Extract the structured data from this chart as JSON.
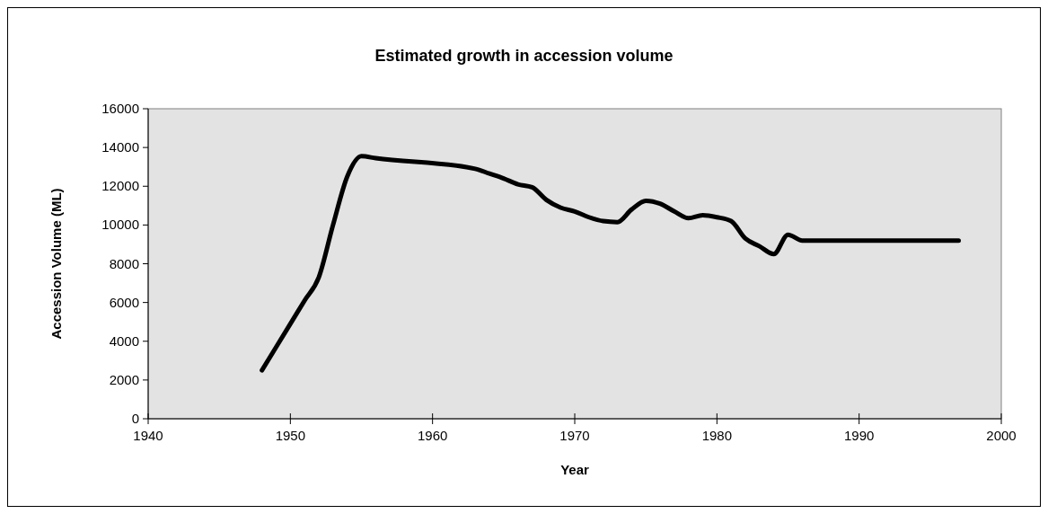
{
  "chart_data": {
    "type": "line",
    "title": "Estimated growth in accession volume",
    "xlabel": "Year",
    "ylabel": "Accession Volume (ML)",
    "xlim": [
      1940,
      2000
    ],
    "xticks": [
      1940,
      1950,
      1960,
      1970,
      1980,
      1990,
      2000
    ],
    "ylim": [
      0,
      16000
    ],
    "yticks": [
      0,
      2000,
      4000,
      6000,
      8000,
      10000,
      12000,
      14000,
      16000
    ],
    "marker": "none",
    "line_style": "solid",
    "x": [
      1948,
      1949,
      1950,
      1951,
      1952,
      1953,
      1954,
      1955,
      1956,
      1963,
      1964,
      1965,
      1966,
      1967,
      1968,
      1969,
      1970,
      1971,
      1972,
      1973,
      1974,
      1975,
      1976,
      1977,
      1978,
      1979,
      1980,
      1981,
      1982,
      1983,
      1984,
      1985,
      1986,
      1987,
      1997
    ],
    "series": [
      {
        "color": "#000000",
        "values": [
          2500,
          3700,
          4900,
          6100,
          7300,
          10000,
          12500,
          13550,
          13450,
          12900,
          12650,
          12400,
          12100,
          11950,
          11300,
          10900,
          10700,
          10400,
          10200,
          10150,
          10800,
          11250,
          11100,
          10700,
          10350,
          10500,
          10400,
          10200,
          9300,
          8900,
          8500,
          9500,
          9200,
          9200,
          9200
        ]
      }
    ]
  }
}
